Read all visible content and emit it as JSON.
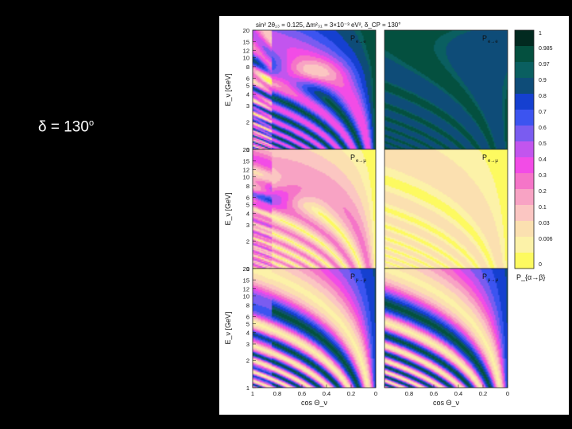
{
  "slide": {
    "label_main": "δ = 130",
    "label_sup": "o"
  },
  "chart_data": {
    "type": "heatmap",
    "title": "sin² 2θ₁₃ = 0.125, Δm²₃₁ = 3×10⁻³ eV², δ_CP = 130°",
    "xlabel": "cos Θ_ν",
    "ylabel": "E_ν [GeV]",
    "x_range": [
      1,
      0
    ],
    "y_range": [
      1,
      20
    ],
    "y_scale": "log",
    "x_ticks": [
      "1",
      "0.8",
      "0.6",
      "0.4",
      "0.2",
      "0"
    ],
    "x_ticks_right": [
      "",
      "0.8",
      "0.6",
      "0.4",
      "0.2",
      "0"
    ],
    "y_ticks": [
      {
        "value": 20,
        "label": "20"
      },
      {
        "value": 15,
        "label": "15"
      },
      {
        "value": 12,
        "label": "12"
      },
      {
        "value": 10,
        "label": "10"
      },
      {
        "value": 8,
        "label": "8"
      },
      {
        "value": 6,
        "label": "6"
      },
      {
        "value": 5,
        "label": "5"
      },
      {
        "value": 4,
        "label": "4"
      },
      {
        "value": 3,
        "label": "3"
      },
      {
        "value": 2,
        "label": "2"
      },
      {
        "value": 1,
        "label": "1"
      }
    ],
    "panels": [
      {
        "row": 0,
        "col": 0,
        "label": "P",
        "sub": "e→e",
        "kind": "ee",
        "hierarchy": "normal"
      },
      {
        "row": 0,
        "col": 1,
        "label": "P",
        "sub": "e→e",
        "kind": "ee",
        "hierarchy": "inverted"
      },
      {
        "row": 1,
        "col": 0,
        "label": "P",
        "sub": "e→μ",
        "kind": "emu",
        "hierarchy": "normal"
      },
      {
        "row": 1,
        "col": 1,
        "label": "P",
        "sub": "e→μ",
        "kind": "emu",
        "hierarchy": "inverted"
      },
      {
        "row": 2,
        "col": 0,
        "label": "P",
        "sub": "μ→μ",
        "kind": "mumu",
        "hierarchy": "normal"
      },
      {
        "row": 2,
        "col": 1,
        "label": "P",
        "sub": "μ→μ",
        "kind": "mumu",
        "hierarchy": "inverted"
      }
    ],
    "colorbar": {
      "levels": [
        "1",
        "0.985",
        "0.97",
        "0.9",
        "0.8",
        "0.7",
        "0.6",
        "0.5",
        "0.4",
        "0.3",
        "0.2",
        "0.1",
        "0.03",
        "0.006",
        "0"
      ],
      "values": [
        1,
        0.985,
        0.97,
        0.9,
        0.8,
        0.7,
        0.6,
        0.5,
        0.4,
        0.3,
        0.2,
        0.1,
        0.03,
        0.006,
        0
      ],
      "colors": [
        "#022a20",
        "#04503f",
        "#0a5f60",
        "#0e4c78",
        "#1540d0",
        "#3c54f0",
        "#7a5cf0",
        "#c255ee",
        "#f24ce6",
        "#f575c8",
        "#f8a3c4",
        "#fbc6c2",
        "#fbe0b0",
        "#fcf2a8",
        "#fdfa60"
      ],
      "label": "P_{α→β}"
    }
  }
}
